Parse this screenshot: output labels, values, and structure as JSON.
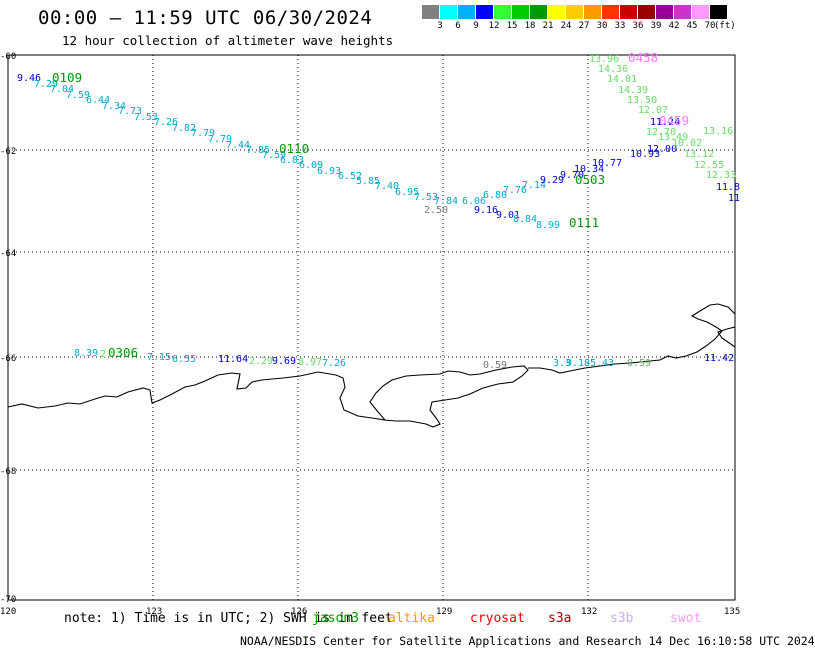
{
  "header": {
    "title": "00:00 – 11:59 UTC 06/30/2024",
    "subtitle": "12 hour collection of altimeter wave heights"
  },
  "color_scale": {
    "colors": [
      "#808080",
      "#00ffff",
      "#00b0ff",
      "#0000ff",
      "#33ff33",
      "#00cc00",
      "#009900",
      "#ffff00",
      "#ffcc00",
      "#ff9900",
      "#ff3300",
      "#cc0000",
      "#990000",
      "#990099",
      "#cc33cc",
      "#ff99ff",
      "#000000"
    ],
    "ticks": [
      "3",
      "6",
      "9",
      "12",
      "15",
      "18",
      "21",
      "24",
      "27",
      "30",
      "33",
      "36",
      "39",
      "42",
      "45",
      "70"
    ],
    "unit": "(ft)"
  },
  "axes": {
    "y_labels": [
      "-60",
      "-62",
      "-64",
      "-66",
      "-68",
      "-70"
    ],
    "x_labels": [
      "120",
      "123",
      "126",
      "129",
      "132",
      "135"
    ]
  },
  "passes": [
    {
      "label": "0109",
      "color": "#009900"
    },
    {
      "label": "0110",
      "color": "#009900"
    },
    {
      "label": "0111",
      "color": "#009900"
    },
    {
      "label": "0306",
      "color": "#009900"
    },
    {
      "label": "0458",
      "color": "#ff77ff"
    },
    {
      "label": "0459",
      "color": "#ff77ff"
    },
    {
      "label": "0503",
      "color": "#009900"
    }
  ],
  "wave_labels": {
    "track1": [
      "9.46",
      "7.29",
      "7.04",
      "7.59",
      "6.44",
      "7.34",
      "7.73",
      "7.53",
      "7.26",
      "7.82",
      "7.79",
      "7.79",
      "7.44",
      "7.85",
      "7.59",
      "6.83",
      "6.09",
      "6.93",
      "6.52",
      "5.85",
      "7.40",
      "6.95",
      "7.53",
      "7.84",
      "2.50",
      "6.06",
      "6.80",
      "7.76",
      "7.14",
      "9.16",
      "9.01",
      "8.84",
      "8.99"
    ],
    "track2": [
      "9.29",
      "9.70",
      "10.34",
      "10.77",
      "10.93",
      "12.00",
      "11.24"
    ],
    "track3": [
      "13.96",
      "14.36",
      "14.01",
      "14.39",
      "13.50",
      "12.07",
      "12.70",
      "13.16",
      "13.49",
      "10.02",
      "13.12",
      "12.55",
      "12.33",
      "11.8",
      "11"
    ],
    "track4": [
      "8.39",
      "2",
      "7.15",
      "6.55",
      "11.64",
      "2.29",
      "9.69",
      "8.97",
      "7.26",
      "0.59",
      "3.3",
      "9.18",
      "5.43",
      "0.59",
      "11.42"
    ]
  },
  "note": {
    "text": "note: 1) Time is in UTC; 2) SWH is in feet",
    "satellites": [
      {
        "name": "jason3",
        "color": "#009900"
      },
      {
        "name": "altika",
        "color": "#ff9900"
      },
      {
        "name": "cryosat",
        "color": "#ff0000"
      },
      {
        "name": "s3a",
        "color": "#990000"
      },
      {
        "name": "s3b",
        "color": "#ccaaee"
      },
      {
        "name": "swot",
        "color": "#ff99ff"
      }
    ]
  },
  "footer": {
    "credit": "NOAA/NESDIS Center for Satellite Applications and Research   14 Dec 16:10:58 UTC 2024"
  }
}
